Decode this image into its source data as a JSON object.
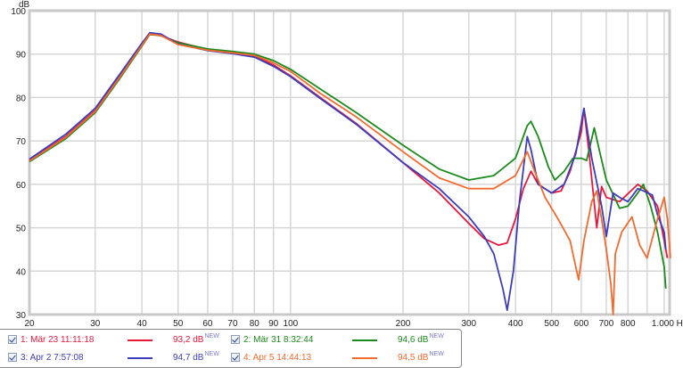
{
  "chart_data": {
    "type": "line",
    "title": "",
    "xlabel": "Hz",
    "ylabel": "dB",
    "xscale": "log",
    "xlim": [
      20,
      1050
    ],
    "ylim": [
      30,
      100
    ],
    "grid": true,
    "x_ticks": [
      "20",
      "30",
      "40",
      "50",
      "60",
      "70",
      "80",
      "90",
      "100",
      "200",
      "300",
      "400",
      "500",
      "600",
      "700",
      "800",
      "1.000 Hz"
    ],
    "y_ticks": [
      "30",
      "40",
      "50",
      "60",
      "70",
      "80",
      "90",
      "100"
    ],
    "legend_position": "bottom-left",
    "series": [
      {
        "name": "1: Mär 23 11:11:18",
        "color": "#e8173c",
        "level": "93,2 dB",
        "points": [
          [
            20,
            65.5
          ],
          [
            25,
            71
          ],
          [
            30,
            77
          ],
          [
            35,
            85
          ],
          [
            40,
            92
          ],
          [
            42,
            94.7
          ],
          [
            45,
            94.2
          ],
          [
            50,
            92.8
          ],
          [
            60,
            91
          ],
          [
            70,
            90.3
          ],
          [
            80,
            89.5
          ],
          [
            90,
            87.5
          ],
          [
            100,
            85
          ],
          [
            120,
            80
          ],
          [
            150,
            74
          ],
          [
            200,
            65
          ],
          [
            250,
            58
          ],
          [
            300,
            51
          ],
          [
            330,
            47.5
          ],
          [
            360,
            46
          ],
          [
            380,
            46.5
          ],
          [
            400,
            52
          ],
          [
            420,
            59
          ],
          [
            440,
            63
          ],
          [
            460,
            60
          ],
          [
            500,
            58
          ],
          [
            530,
            58.5
          ],
          [
            560,
            63
          ],
          [
            600,
            72
          ],
          [
            610,
            77.5
          ],
          [
            630,
            67
          ],
          [
            660,
            50
          ],
          [
            680,
            59.5
          ],
          [
            700,
            57
          ],
          [
            760,
            56
          ],
          [
            850,
            60
          ],
          [
            900,
            58.5
          ],
          [
            960,
            55
          ],
          [
            1000,
            47
          ],
          [
            1020,
            43
          ]
        ]
      },
      {
        "name": "2: Mär 31 8:32:44",
        "color": "#1a8a1a",
        "level": "94,6 dB",
        "points": [
          [
            20,
            65.2
          ],
          [
            25,
            70.5
          ],
          [
            30,
            76.5
          ],
          [
            35,
            84.5
          ],
          [
            40,
            91.8
          ],
          [
            42,
            94.5
          ],
          [
            45,
            94.3
          ],
          [
            50,
            92.6
          ],
          [
            60,
            91.2
          ],
          [
            70,
            90.6
          ],
          [
            80,
            90
          ],
          [
            90,
            88.5
          ],
          [
            100,
            86.5
          ],
          [
            120,
            82
          ],
          [
            150,
            76.5
          ],
          [
            200,
            69
          ],
          [
            250,
            63.5
          ],
          [
            300,
            61
          ],
          [
            350,
            62
          ],
          [
            400,
            66
          ],
          [
            430,
            73.5
          ],
          [
            440,
            74.5
          ],
          [
            460,
            71
          ],
          [
            490,
            64
          ],
          [
            510,
            61
          ],
          [
            540,
            63
          ],
          [
            570,
            66
          ],
          [
            600,
            66
          ],
          [
            620,
            65.5
          ],
          [
            650,
            73
          ],
          [
            670,
            68
          ],
          [
            700,
            61
          ],
          [
            760,
            54.5
          ],
          [
            800,
            55
          ],
          [
            850,
            58
          ],
          [
            880,
            60
          ],
          [
            920,
            55
          ],
          [
            960,
            49
          ],
          [
            1000,
            41
          ],
          [
            1010,
            36
          ]
        ]
      },
      {
        "name": "3: Apr 2 7:57:08",
        "color": "#3c3cbc",
        "level": "94,7 dB",
        "points": [
          [
            20,
            65.8
          ],
          [
            25,
            71.5
          ],
          [
            30,
            77.5
          ],
          [
            35,
            85.5
          ],
          [
            40,
            92.5
          ],
          [
            42,
            94.9
          ],
          [
            45,
            94.6
          ],
          [
            50,
            92.3
          ],
          [
            60,
            90.8
          ],
          [
            70,
            90.1
          ],
          [
            80,
            89.3
          ],
          [
            90,
            87.2
          ],
          [
            100,
            84.8
          ],
          [
            120,
            79.8
          ],
          [
            150,
            73.8
          ],
          [
            200,
            65
          ],
          [
            250,
            59
          ],
          [
            300,
            52.5
          ],
          [
            330,
            48
          ],
          [
            350,
            44
          ],
          [
            370,
            36
          ],
          [
            380,
            31
          ],
          [
            395,
            40
          ],
          [
            410,
            56
          ],
          [
            430,
            71
          ],
          [
            440,
            68
          ],
          [
            460,
            60
          ],
          [
            500,
            58
          ],
          [
            540,
            60
          ],
          [
            580,
            67
          ],
          [
            610,
            77.5
          ],
          [
            640,
            66
          ],
          [
            680,
            55
          ],
          [
            700,
            48
          ],
          [
            730,
            58
          ],
          [
            760,
            57
          ],
          [
            800,
            56
          ],
          [
            850,
            59
          ],
          [
            880,
            58.5
          ],
          [
            930,
            57.5
          ],
          [
            960,
            53
          ],
          [
            1000,
            49
          ],
          [
            1010,
            45
          ]
        ]
      },
      {
        "name": "4: Apr 5 14:44:13",
        "color": "#f26a2e",
        "level": "94,5 dB",
        "points": [
          [
            20,
            65.4
          ],
          [
            25,
            70.8
          ],
          [
            30,
            76.8
          ],
          [
            35,
            84.8
          ],
          [
            40,
            92
          ],
          [
            42,
            94.6
          ],
          [
            45,
            94.3
          ],
          [
            50,
            92.2
          ],
          [
            60,
            90.9
          ],
          [
            70,
            90.3
          ],
          [
            80,
            89.7
          ],
          [
            90,
            88
          ],
          [
            100,
            86
          ],
          [
            120,
            81
          ],
          [
            150,
            75.5
          ],
          [
            200,
            67.5
          ],
          [
            250,
            61.5
          ],
          [
            300,
            59
          ],
          [
            350,
            59
          ],
          [
            400,
            62
          ],
          [
            430,
            67.5
          ],
          [
            450,
            63
          ],
          [
            480,
            57
          ],
          [
            520,
            52
          ],
          [
            560,
            47
          ],
          [
            590,
            38
          ],
          [
            610,
            47
          ],
          [
            640,
            56
          ],
          [
            660,
            58.5
          ],
          [
            680,
            52
          ],
          [
            700,
            45
          ],
          [
            720,
            37
          ],
          [
            730,
            30
          ],
          [
            740,
            44
          ],
          [
            770,
            49
          ],
          [
            820,
            52.5
          ],
          [
            860,
            46
          ],
          [
            900,
            43
          ],
          [
            960,
            52
          ],
          [
            1000,
            57
          ],
          [
            1020,
            52
          ],
          [
            1040,
            43
          ]
        ]
      }
    ]
  },
  "axis": {
    "y_unit": "dB",
    "x_unit": "Hz"
  },
  "legend": {
    "items": [
      {
        "label": "1: Mär 23 11:11:18",
        "value": "93,2 dB",
        "badge": "NEW",
        "color": "#e8173c",
        "checked": true
      },
      {
        "label": "2: Mär 31 8:32:44",
        "value": "94,6 dB",
        "badge": "NEW",
        "color": "#1a8a1a",
        "checked": true
      },
      {
        "label": "3: Apr 2 7:57:08",
        "value": "94,7 dB",
        "badge": "NEW",
        "color": "#3c3cbc",
        "checked": true
      },
      {
        "label": "4: Apr 5 14:44:13",
        "value": "94,5 dB",
        "badge": "NEW",
        "color": "#f26a2e",
        "checked": true
      }
    ]
  }
}
